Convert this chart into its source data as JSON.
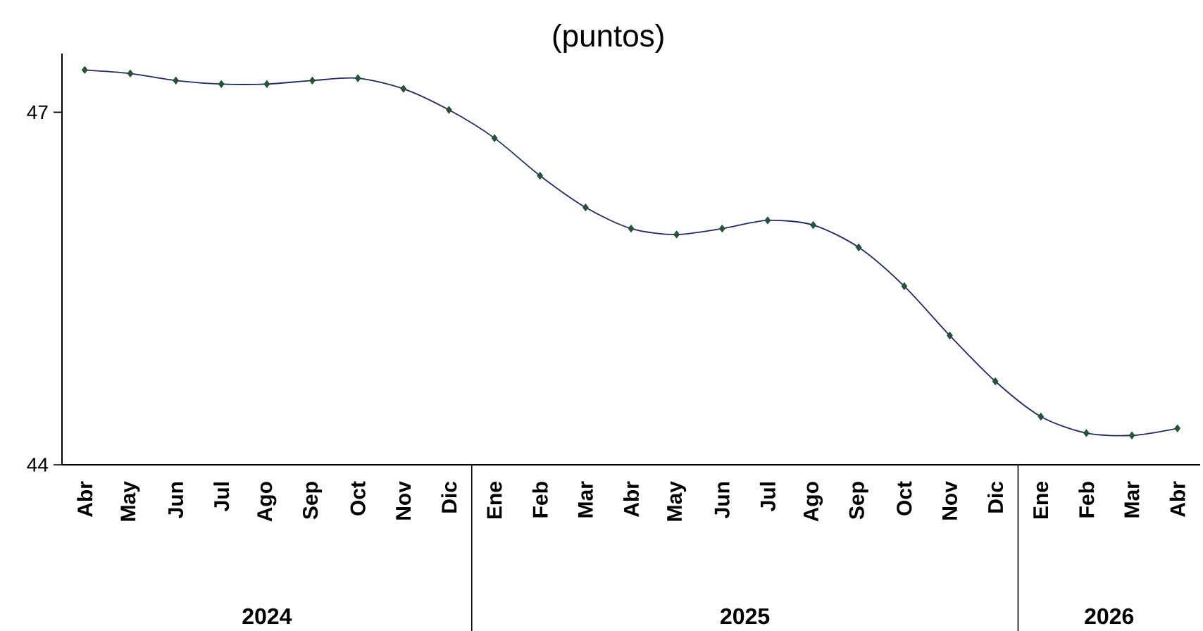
{
  "chart_data": {
    "type": "line",
    "title": "(puntos)",
    "categories": [
      "Abr",
      "May",
      "Jun",
      "Jul",
      "Ago",
      "Sep",
      "Oct",
      "Nov",
      "Dic",
      "Ene",
      "Feb",
      "Mar",
      "Abr",
      "May",
      "Jun",
      "Jul",
      "Ago",
      "Sep",
      "Oct",
      "Nov",
      "Dic",
      "Ene",
      "Feb",
      "Mar",
      "Abr"
    ],
    "series": [
      {
        "color": "#1f2a6b",
        "values": [
          47.36,
          47.33,
          47.27,
          47.24,
          47.24,
          47.27,
          47.29,
          47.2,
          47.02,
          46.78,
          46.46,
          46.19,
          46.01,
          45.96,
          46.01,
          46.08,
          46.04,
          45.85,
          45.52,
          45.1,
          44.71,
          44.41,
          44.27,
          44.25,
          44.31
        ]
      }
    ],
    "ylim": [
      44,
      47.5
    ],
    "yticks": [
      44,
      47
    ],
    "marker": "diamond",
    "grid": false,
    "annotations": [
      "2024",
      "2025",
      "2026"
    ]
  }
}
